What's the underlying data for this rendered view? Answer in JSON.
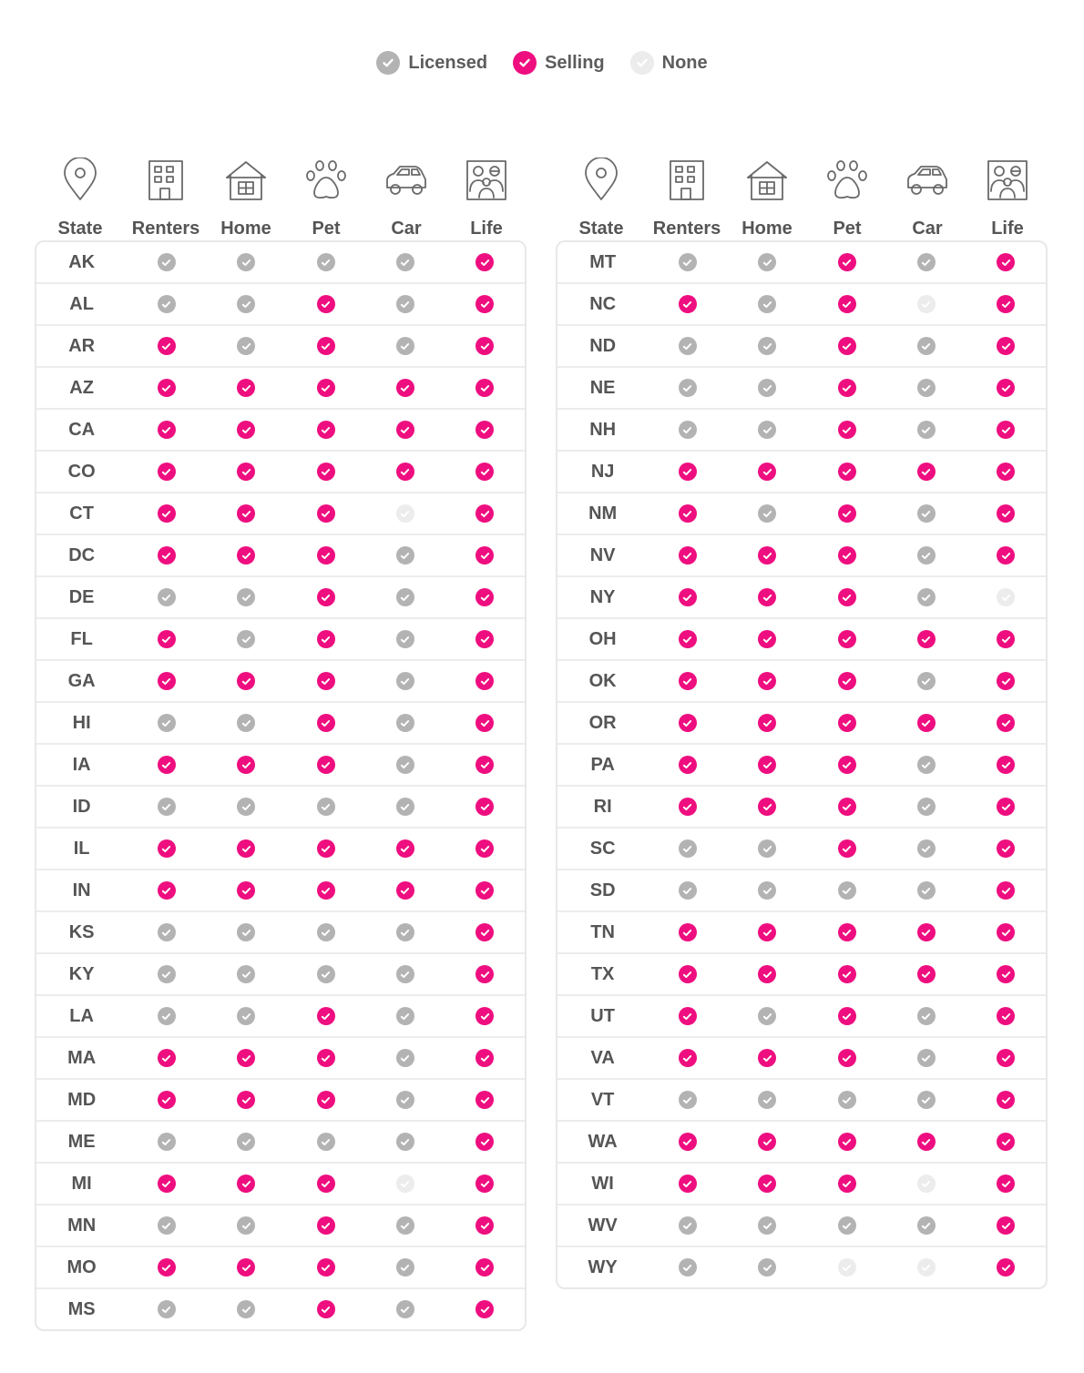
{
  "legend": [
    {
      "label": "Licensed",
      "status": "L"
    },
    {
      "label": "Selling",
      "status": "S"
    },
    {
      "label": "None",
      "status": "N"
    }
  ],
  "columns": [
    {
      "label": "State",
      "icon": "map-pin-icon"
    },
    {
      "label": "Renters",
      "icon": "apartment-building-icon"
    },
    {
      "label": "Home",
      "icon": "house-icon"
    },
    {
      "label": "Pet",
      "icon": "paw-print-icon"
    },
    {
      "label": "Car",
      "icon": "car-icon"
    },
    {
      "label": "Life",
      "icon": "family-portrait-icon"
    }
  ],
  "colors": {
    "selling": "#ee0e7f",
    "licensed": "#b3b3b3",
    "none": "#ececec"
  },
  "tables": [
    {
      "rows": [
        {
          "state": "AK",
          "values": [
            "L",
            "L",
            "L",
            "L",
            "S"
          ]
        },
        {
          "state": "AL",
          "values": [
            "L",
            "L",
            "S",
            "L",
            "S"
          ]
        },
        {
          "state": "AR",
          "values": [
            "S",
            "L",
            "S",
            "L",
            "S"
          ]
        },
        {
          "state": "AZ",
          "values": [
            "S",
            "S",
            "S",
            "S",
            "S"
          ]
        },
        {
          "state": "CA",
          "values": [
            "S",
            "S",
            "S",
            "S",
            "S"
          ]
        },
        {
          "state": "CO",
          "values": [
            "S",
            "S",
            "S",
            "S",
            "S"
          ]
        },
        {
          "state": "CT",
          "values": [
            "S",
            "S",
            "S",
            "N",
            "S"
          ]
        },
        {
          "state": "DC",
          "values": [
            "S",
            "S",
            "S",
            "L",
            "S"
          ]
        },
        {
          "state": "DE",
          "values": [
            "L",
            "L",
            "S",
            "L",
            "S"
          ]
        },
        {
          "state": "FL",
          "values": [
            "S",
            "L",
            "S",
            "L",
            "S"
          ]
        },
        {
          "state": "GA",
          "values": [
            "S",
            "S",
            "S",
            "L",
            "S"
          ]
        },
        {
          "state": "HI",
          "values": [
            "L",
            "L",
            "S",
            "L",
            "S"
          ]
        },
        {
          "state": "IA",
          "values": [
            "S",
            "S",
            "S",
            "L",
            "S"
          ]
        },
        {
          "state": "ID",
          "values": [
            "L",
            "L",
            "L",
            "L",
            "S"
          ]
        },
        {
          "state": "IL",
          "values": [
            "S",
            "S",
            "S",
            "S",
            "S"
          ]
        },
        {
          "state": "IN",
          "values": [
            "S",
            "S",
            "S",
            "S",
            "S"
          ]
        },
        {
          "state": "KS",
          "values": [
            "L",
            "L",
            "L",
            "L",
            "S"
          ]
        },
        {
          "state": "KY",
          "values": [
            "L",
            "L",
            "L",
            "L",
            "S"
          ]
        },
        {
          "state": "LA",
          "values": [
            "L",
            "L",
            "S",
            "L",
            "S"
          ]
        },
        {
          "state": "MA",
          "values": [
            "S",
            "S",
            "S",
            "L",
            "S"
          ]
        },
        {
          "state": "MD",
          "values": [
            "S",
            "S",
            "S",
            "L",
            "S"
          ]
        },
        {
          "state": "ME",
          "values": [
            "L",
            "L",
            "L",
            "L",
            "S"
          ]
        },
        {
          "state": "MI",
          "values": [
            "S",
            "S",
            "S",
            "N",
            "S"
          ]
        },
        {
          "state": "MN",
          "values": [
            "L",
            "L",
            "S",
            "L",
            "S"
          ]
        },
        {
          "state": "MO",
          "values": [
            "S",
            "S",
            "S",
            "L",
            "S"
          ]
        },
        {
          "state": "MS",
          "values": [
            "L",
            "L",
            "S",
            "L",
            "S"
          ]
        }
      ]
    },
    {
      "rows": [
        {
          "state": "MT",
          "values": [
            "L",
            "L",
            "S",
            "L",
            "S"
          ]
        },
        {
          "state": "NC",
          "values": [
            "S",
            "L",
            "S",
            "N",
            "S"
          ]
        },
        {
          "state": "ND",
          "values": [
            "L",
            "L",
            "S",
            "L",
            "S"
          ]
        },
        {
          "state": "NE",
          "values": [
            "L",
            "L",
            "S",
            "L",
            "S"
          ]
        },
        {
          "state": "NH",
          "values": [
            "L",
            "L",
            "S",
            "L",
            "S"
          ]
        },
        {
          "state": "NJ",
          "values": [
            "S",
            "S",
            "S",
            "S",
            "S"
          ]
        },
        {
          "state": "NM",
          "values": [
            "S",
            "L",
            "S",
            "L",
            "S"
          ]
        },
        {
          "state": "NV",
          "values": [
            "S",
            "S",
            "S",
            "L",
            "S"
          ]
        },
        {
          "state": "NY",
          "values": [
            "S",
            "S",
            "S",
            "L",
            "N"
          ]
        },
        {
          "state": "OH",
          "values": [
            "S",
            "S",
            "S",
            "S",
            "S"
          ]
        },
        {
          "state": "OK",
          "values": [
            "S",
            "S",
            "S",
            "L",
            "S"
          ]
        },
        {
          "state": "OR",
          "values": [
            "S",
            "S",
            "S",
            "S",
            "S"
          ]
        },
        {
          "state": "PA",
          "values": [
            "S",
            "S",
            "S",
            "L",
            "S"
          ]
        },
        {
          "state": "RI",
          "values": [
            "S",
            "S",
            "S",
            "L",
            "S"
          ]
        },
        {
          "state": "SC",
          "values": [
            "L",
            "L",
            "S",
            "L",
            "S"
          ]
        },
        {
          "state": "SD",
          "values": [
            "L",
            "L",
            "L",
            "L",
            "S"
          ]
        },
        {
          "state": "TN",
          "values": [
            "S",
            "S",
            "S",
            "S",
            "S"
          ]
        },
        {
          "state": "TX",
          "values": [
            "S",
            "S",
            "S",
            "S",
            "S"
          ]
        },
        {
          "state": "UT",
          "values": [
            "S",
            "L",
            "S",
            "L",
            "S"
          ]
        },
        {
          "state": "VA",
          "values": [
            "S",
            "S",
            "S",
            "L",
            "S"
          ]
        },
        {
          "state": "VT",
          "values": [
            "L",
            "L",
            "L",
            "L",
            "S"
          ]
        },
        {
          "state": "WA",
          "values": [
            "S",
            "S",
            "S",
            "S",
            "S"
          ]
        },
        {
          "state": "WI",
          "values": [
            "S",
            "S",
            "S",
            "N",
            "S"
          ]
        },
        {
          "state": "WV",
          "values": [
            "L",
            "L",
            "L",
            "L",
            "S"
          ]
        },
        {
          "state": "WY",
          "values": [
            "L",
            "L",
            "N",
            "N",
            "S"
          ]
        }
      ]
    }
  ]
}
